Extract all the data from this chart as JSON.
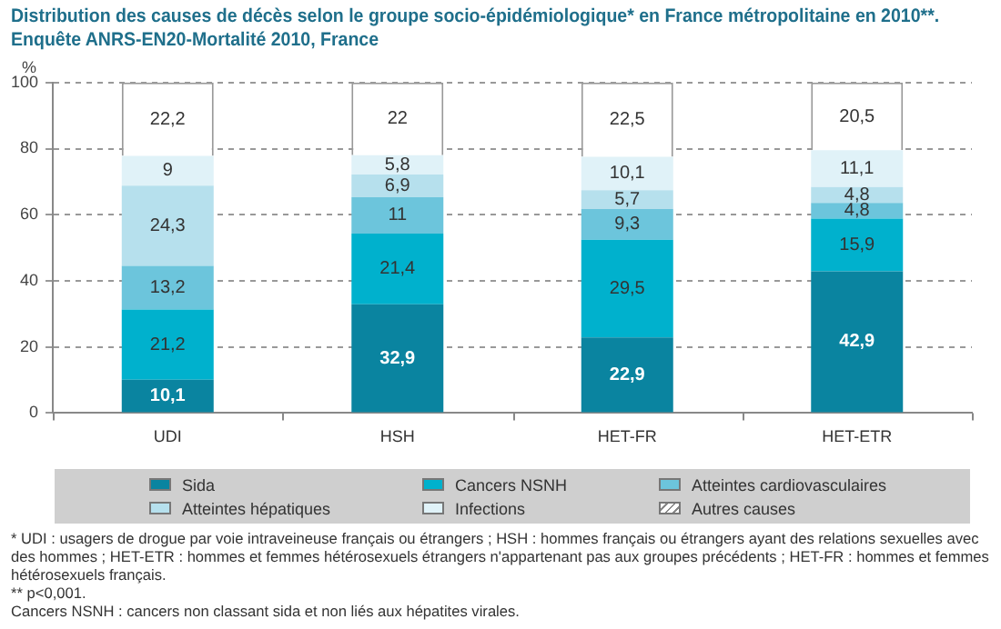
{
  "chart_data": {
    "type": "bar",
    "title": "Distribution des causes de décès selon le groupe socio-épidémiologique* en France métropolitaine en 2010**.",
    "subtitle": "Enquête ANRS-EN20-Mortalité 2010, France",
    "ylabel": "%",
    "categories": [
      "UDI",
      "HSH",
      "HET-FR",
      "HET-ETR"
    ],
    "series": [
      {
        "name": "Sida",
        "color": "#0a84a0",
        "values": [
          10.1,
          32.9,
          22.9,
          42.9
        ],
        "value_labels": [
          "10,1",
          "32,9",
          "22,9",
          "42,9"
        ]
      },
      {
        "name": "Cancers NSNH",
        "color": "#00b1cd",
        "values": [
          21.2,
          21.4,
          29.5,
          15.9
        ],
        "value_labels": [
          "21,2",
          "21,4",
          "29,5",
          "15,9"
        ]
      },
      {
        "name": "Atteintes cardiovasculaires",
        "color": "#6cc5dc",
        "values": [
          13.2,
          11,
          9.3,
          4.8
        ],
        "value_labels": [
          "13,2",
          "11",
          "9,3",
          "4,8"
        ]
      },
      {
        "name": "Atteintes hépatiques",
        "color": "#b6e0ed",
        "values": [
          24.3,
          6.9,
          5.7,
          4.8
        ],
        "value_labels": [
          "24,3",
          "6,9",
          "5,7",
          "4,8"
        ]
      },
      {
        "name": "Infections",
        "color": "#e0f2f8",
        "values": [
          9,
          5.8,
          10.1,
          11.1
        ],
        "value_labels": [
          "9",
          "5,8",
          "10,1",
          "11,1"
        ]
      },
      {
        "name": "Autres causes",
        "color": "#ffffff",
        "values": [
          22.2,
          22,
          22.5,
          20.5
        ],
        "value_labels": [
          "22,2",
          "22",
          "22,5",
          "20,5"
        ]
      }
    ],
    "stacked": true,
    "ylim": [
      0,
      100
    ],
    "yticks": [
      0,
      20,
      40,
      60,
      80,
      100
    ],
    "grid": "y",
    "legend": "bottom",
    "annotations": [
      "* UDI : usagers de drogue par voie intraveineuse français ou étrangers ; HSH : hommes français ou étrangers ayant des relations sexuelles avec des hommes ; HET-ETR : hommes et femmes hétérosexuels étrangers n'appartenant pas aux groupes précédents ; HET-FR : hommes et femmes hétérosexuels français.",
      "** p<0,001.",
      "Cancers NSNH : cancers non classant sida et non liés aux hépatites virales."
    ]
  }
}
